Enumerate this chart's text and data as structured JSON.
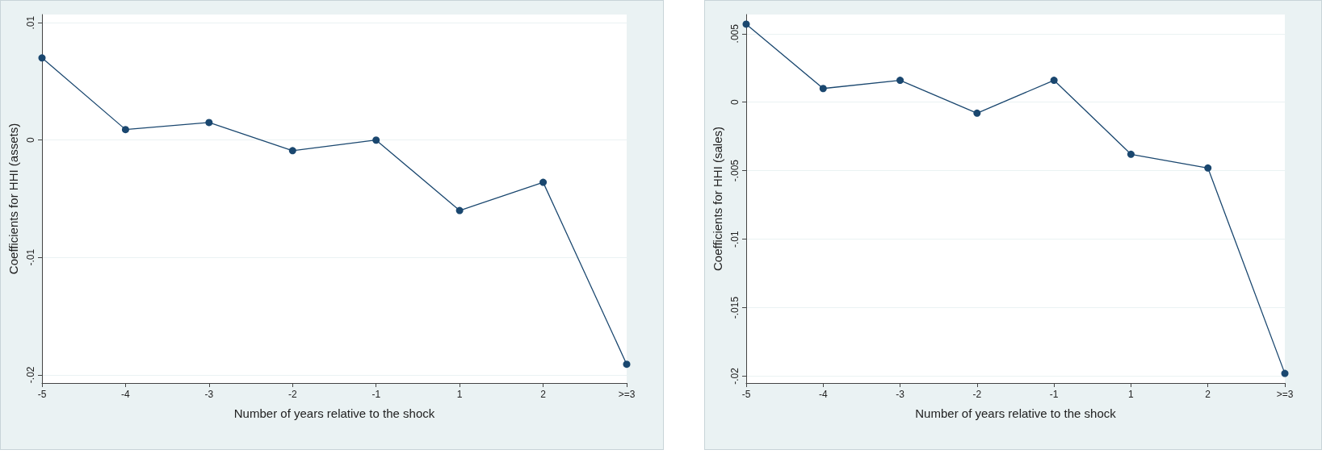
{
  "chart_data": [
    {
      "type": "line",
      "xlabel": "Number of years relative to the shock",
      "ylabel": "Coefficients for HHI (assets)",
      "categories": [
        "-5",
        "-4",
        "-3",
        "-2",
        "-1",
        "1",
        "2",
        ">=3"
      ],
      "series": [
        {
          "color": "#1a476f",
          "values": [
            0.007,
            0.0009,
            0.0015,
            -0.0009,
            0.0,
            -0.006,
            -0.0036,
            -0.0191
          ]
        }
      ],
      "ylim": [
        -0.0207,
        0.0107
      ],
      "yticks": [
        {
          "value": -0.02,
          "label": "-.02"
        },
        {
          "value": -0.01,
          "label": "-.01"
        },
        {
          "value": 0,
          "label": "0"
        },
        {
          "value": 0.01,
          "label": ".01"
        }
      ],
      "grid": "y",
      "marker": "circle",
      "line_style": "solid"
    },
    {
      "type": "line",
      "xlabel": "Number of years relative to the shock",
      "ylabel": "Coefficients for HHI (sales)",
      "categories": [
        "-5",
        "-4",
        "-3",
        "-2",
        "-1",
        "1",
        "2",
        ">=3"
      ],
      "series": [
        {
          "color": "#1a476f",
          "values": [
            0.0057,
            0.001,
            0.0016,
            -0.0008,
            0.0016,
            -0.0038,
            -0.0048,
            -0.0198
          ]
        }
      ],
      "ylim": [
        -0.0205,
        0.0064
      ],
      "yticks": [
        {
          "value": -0.02,
          "label": "-.02"
        },
        {
          "value": -0.015,
          "label": "-.015"
        },
        {
          "value": -0.01,
          "label": "-.01"
        },
        {
          "value": -0.005,
          "label": "-.005"
        },
        {
          "value": 0,
          "label": "0"
        },
        {
          "value": 0.005,
          "label": ".005"
        }
      ],
      "grid": "y",
      "marker": "circle",
      "line_style": "solid"
    }
  ]
}
